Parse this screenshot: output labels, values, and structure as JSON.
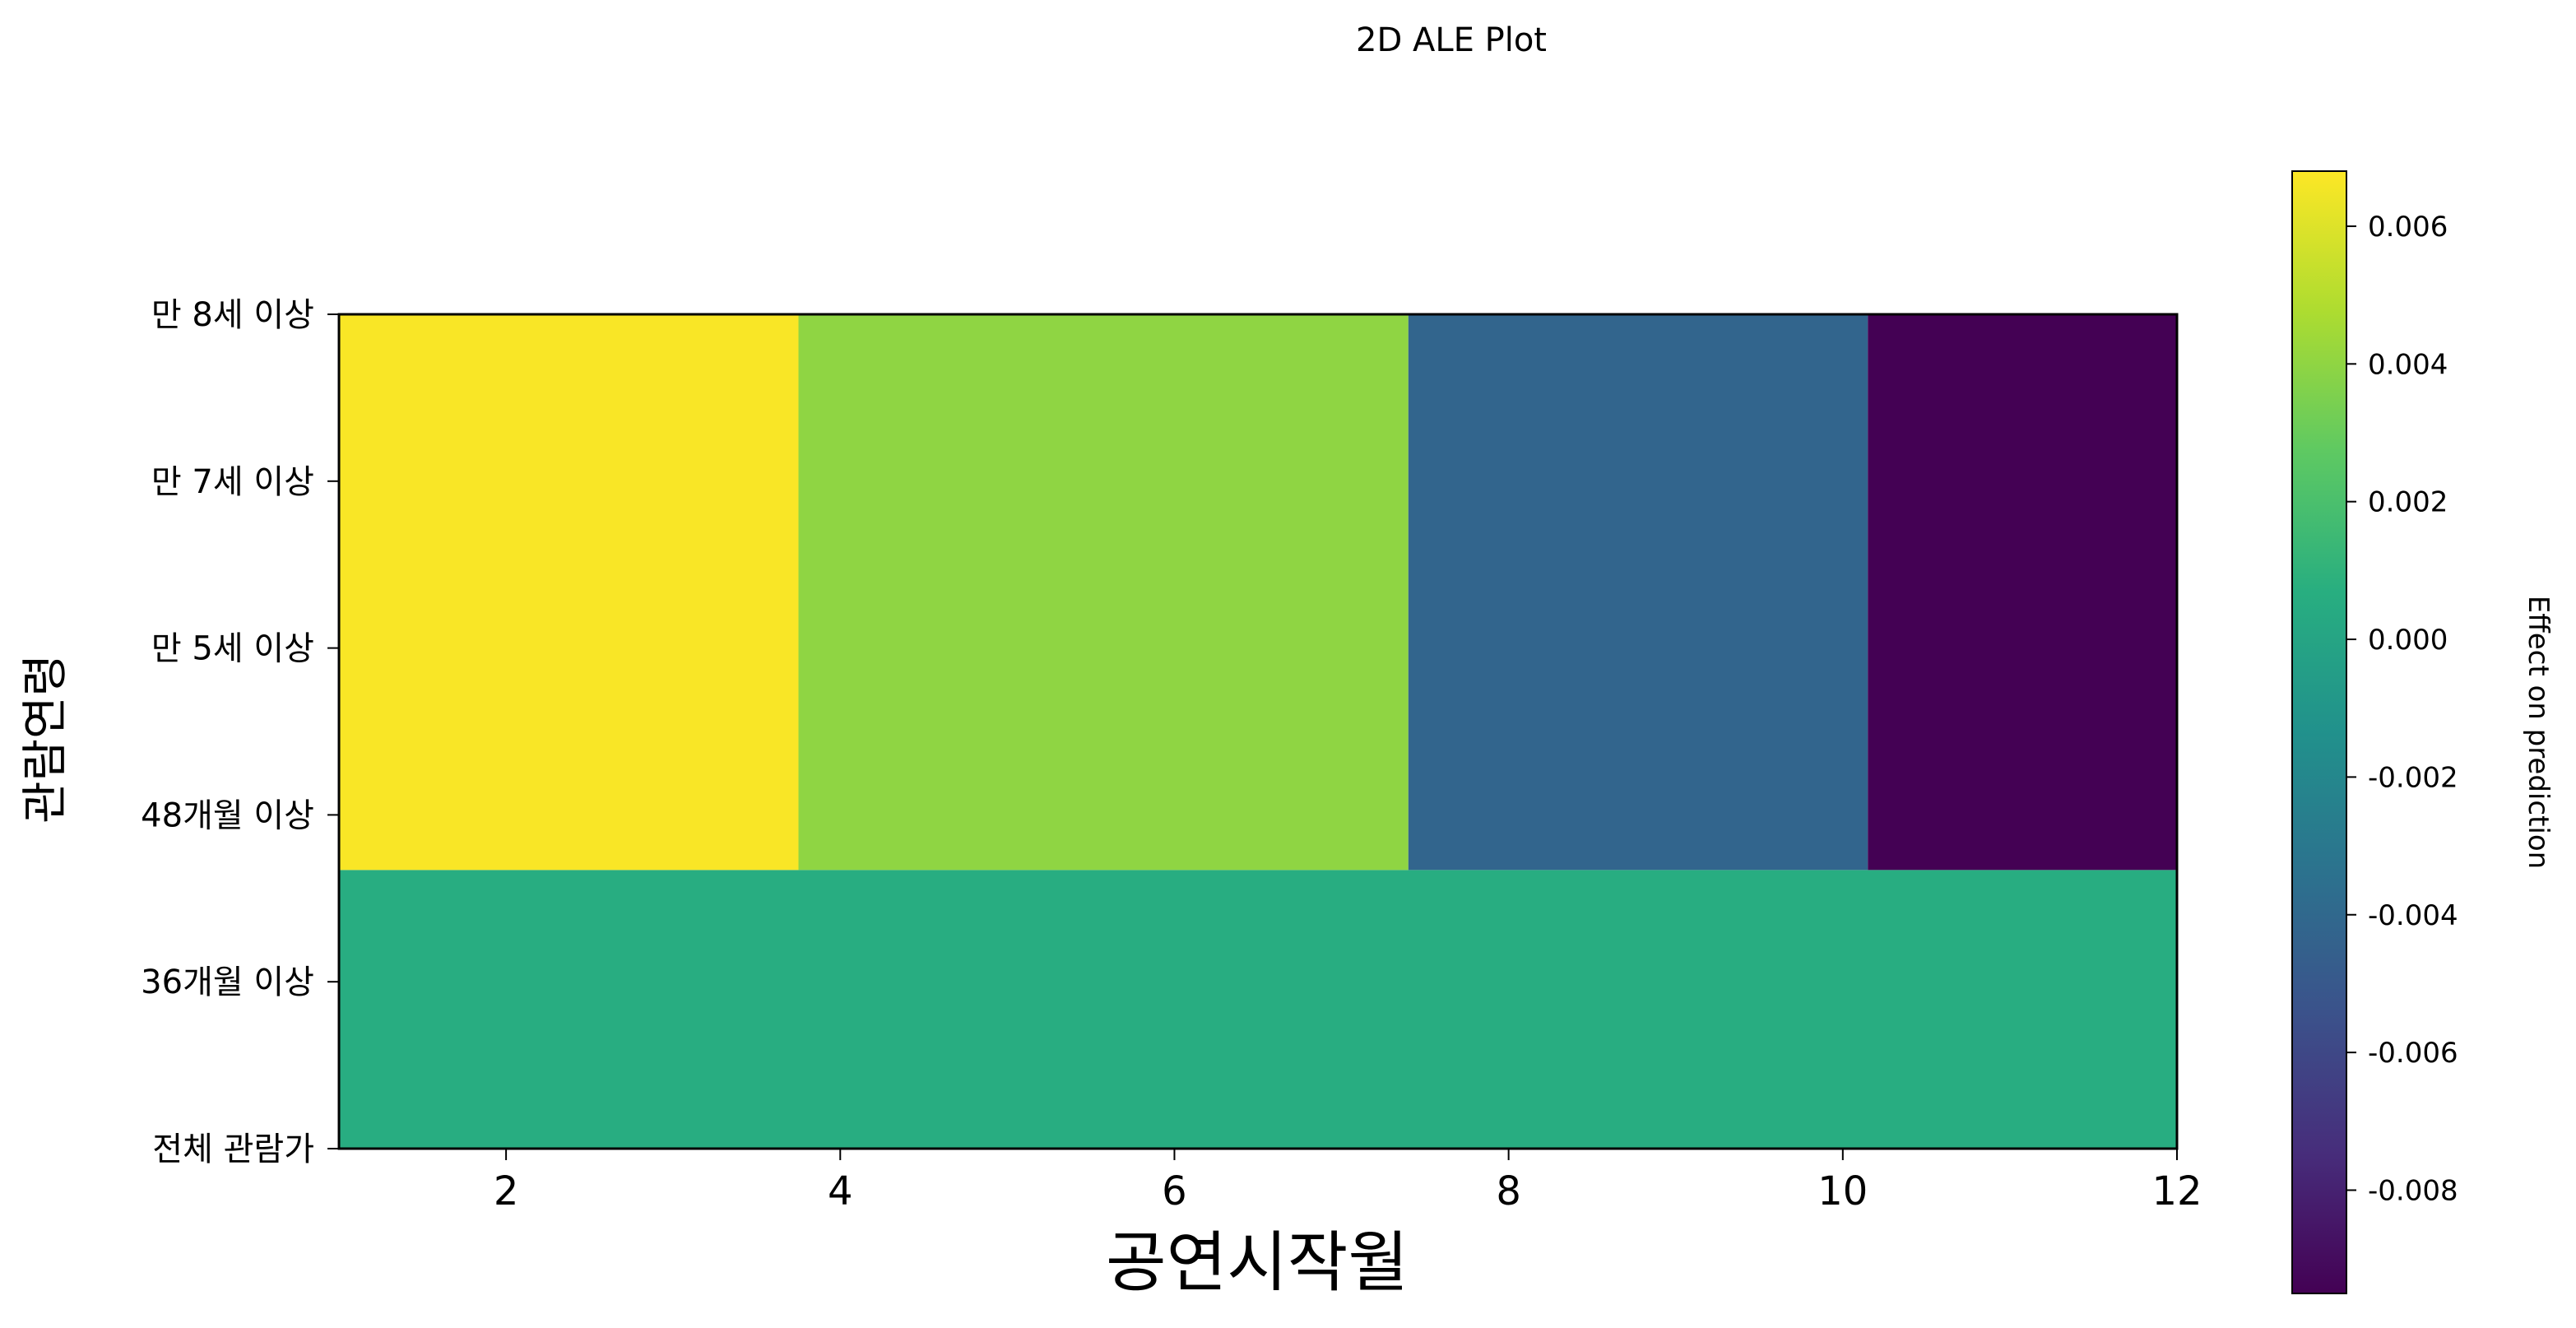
{
  "chart_data": {
    "type": "heatmap",
    "title": "2D ALE Plot",
    "xlabel": "공연시작월",
    "ylabel": "관람연령",
    "xlim": [
      1,
      12
    ],
    "x_ticks": [
      2,
      4,
      6,
      8,
      10,
      12
    ],
    "y_categories": [
      "전체 관람가",
      "36개월 이상",
      "48개월 이상",
      "만 5세 이상",
      "만 7세 이상",
      "만 8세 이상"
    ],
    "cells": [
      {
        "x0": 1,
        "x1": 12,
        "y0": 0,
        "y1": 1.67,
        "value": 0.0006
      },
      {
        "x0": 1,
        "x1": 3.75,
        "y0": 1.67,
        "y1": 5,
        "value": 0.0067
      },
      {
        "x0": 3.75,
        "x1": 7.4,
        "y0": 1.67,
        "y1": 5,
        "value": 0.004
      },
      {
        "x0": 7.4,
        "x1": 10.15,
        "y0": 1.67,
        "y1": 5,
        "value": -0.0042
      },
      {
        "x0": 10.15,
        "x1": 12,
        "y0": 1.67,
        "y1": 5,
        "value": -0.0095
      }
    ],
    "colorbar": {
      "label": "Effect on prediction",
      "colormap": "viridis",
      "vmin": -0.0095,
      "vmax": 0.0068,
      "ticks": [
        0.006,
        0.004,
        0.002,
        0.0,
        -0.002,
        -0.004,
        -0.006,
        -0.008
      ],
      "tick_labels": [
        "0.006",
        "0.004",
        "0.002",
        "0.000",
        "-0.002",
        "-0.004",
        "-0.006",
        "-0.008"
      ]
    }
  }
}
